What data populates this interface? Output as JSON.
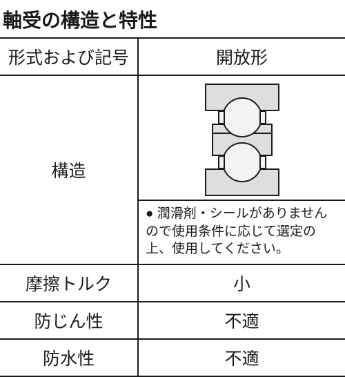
{
  "title": "軸受の構造と特性",
  "table": {
    "header": {
      "left": "形式および記号",
      "right": "開放形"
    },
    "structure_label": "構造",
    "note": "● 潤滑剤・シールがありませんので使用条件に応じて選定の上、使用してください。",
    "rows": [
      {
        "label": "摩擦トルク",
        "value": "小"
      },
      {
        "label": "防じん性",
        "value": "不適"
      },
      {
        "label": "防水性",
        "value": "不適"
      }
    ]
  },
  "diagram": {
    "outline_color": "#1a1a1a",
    "fill_light": "#f3f3f3",
    "fill_mid": "#dedede",
    "stroke_width": 2
  }
}
